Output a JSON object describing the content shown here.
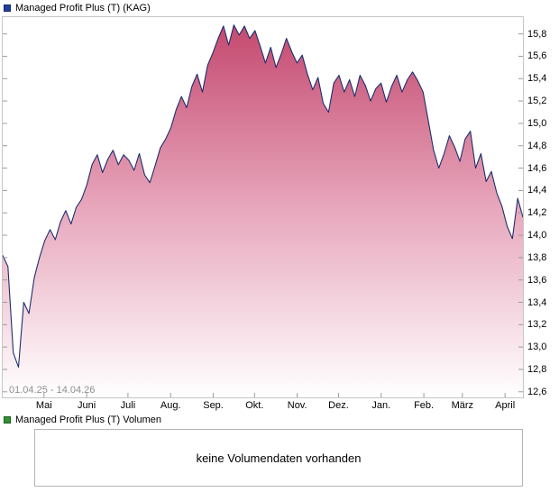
{
  "price_pane": {
    "legend_label": "Managed Profit Plus (T) (KAG)",
    "marker_color": "#1e3f9e",
    "date_range": "01.04.25 - 14.04.26"
  },
  "volume_pane": {
    "legend_label": "Managed Profit Plus (T) Volumen",
    "marker_color": "#2f9331",
    "message": "keine Volumendaten vorhanden"
  },
  "chart_data": {
    "type": "area",
    "title": "Managed Profit Plus (T) (KAG)",
    "x_start_label": "01.04.25",
    "x_end_label": "14.04.26",
    "x_total_days": 378,
    "x_ticks": [
      {
        "label": "Mai",
        "day": 30
      },
      {
        "label": "Juni",
        "day": 61
      },
      {
        "label": "Juli",
        "day": 91
      },
      {
        "label": "Aug.",
        "day": 122
      },
      {
        "label": "Sep.",
        "day": 153
      },
      {
        "label": "Okt.",
        "day": 183
      },
      {
        "label": "Nov.",
        "day": 214
      },
      {
        "label": "Dez.",
        "day": 244
      },
      {
        "label": "Jan.",
        "day": 275
      },
      {
        "label": "Feb.",
        "day": 306
      },
      {
        "label": "März",
        "day": 334
      },
      {
        "label": "April",
        "day": 365
      }
    ],
    "y_ticks": [
      15.8,
      15.6,
      15.4,
      15.2,
      15.0,
      14.8,
      14.6,
      14.4,
      14.2,
      14.0,
      13.8,
      13.6,
      13.4,
      13.2,
      13.0,
      12.8,
      12.6
    ],
    "y_tick_labels": [
      "15,8",
      "15,6",
      "15,4",
      "15,2",
      "15,0",
      "14,8",
      "14,6",
      "14,4",
      "14,2",
      "14,0",
      "13,8",
      "13,6",
      "13,4",
      "13,2",
      "13,0",
      "12,8",
      "12,6"
    ],
    "ylim": [
      12.55,
      15.95
    ],
    "grid": false,
    "legend_position": "top-left",
    "line_color": "#1c2f6e",
    "area_gradient": [
      "#c4496f",
      "#e8a8bd",
      "#ffffff"
    ],
    "series": [
      {
        "name": "Managed Profit Plus (T)",
        "values": [
          13.82,
          13.72,
          12.95,
          12.82,
          13.4,
          13.3,
          13.62,
          13.8,
          13.95,
          14.05,
          13.96,
          14.12,
          14.22,
          14.1,
          14.25,
          14.32,
          14.45,
          14.63,
          14.72,
          14.56,
          14.68,
          14.76,
          14.63,
          14.72,
          14.67,
          14.58,
          14.73,
          14.54,
          14.47,
          14.62,
          14.78,
          14.86,
          14.96,
          15.12,
          15.24,
          15.14,
          15.33,
          15.44,
          15.28,
          15.52,
          15.63,
          15.76,
          15.87,
          15.7,
          15.88,
          15.79,
          15.87,
          15.76,
          15.83,
          15.69,
          15.54,
          15.68,
          15.5,
          15.62,
          15.76,
          15.64,
          15.54,
          15.61,
          15.44,
          15.3,
          15.41,
          15.18,
          15.1,
          15.36,
          15.43,
          15.28,
          15.39,
          15.24,
          15.43,
          15.34,
          15.2,
          15.31,
          15.36,
          15.19,
          15.33,
          15.43,
          15.28,
          15.39,
          15.46,
          15.38,
          15.28,
          15.02,
          14.76,
          14.6,
          14.73,
          14.89,
          14.79,
          14.66,
          14.86,
          14.93,
          14.6,
          14.73,
          14.48,
          14.57,
          14.38,
          14.26,
          14.08,
          13.97,
          14.33,
          14.16
        ]
      }
    ]
  }
}
